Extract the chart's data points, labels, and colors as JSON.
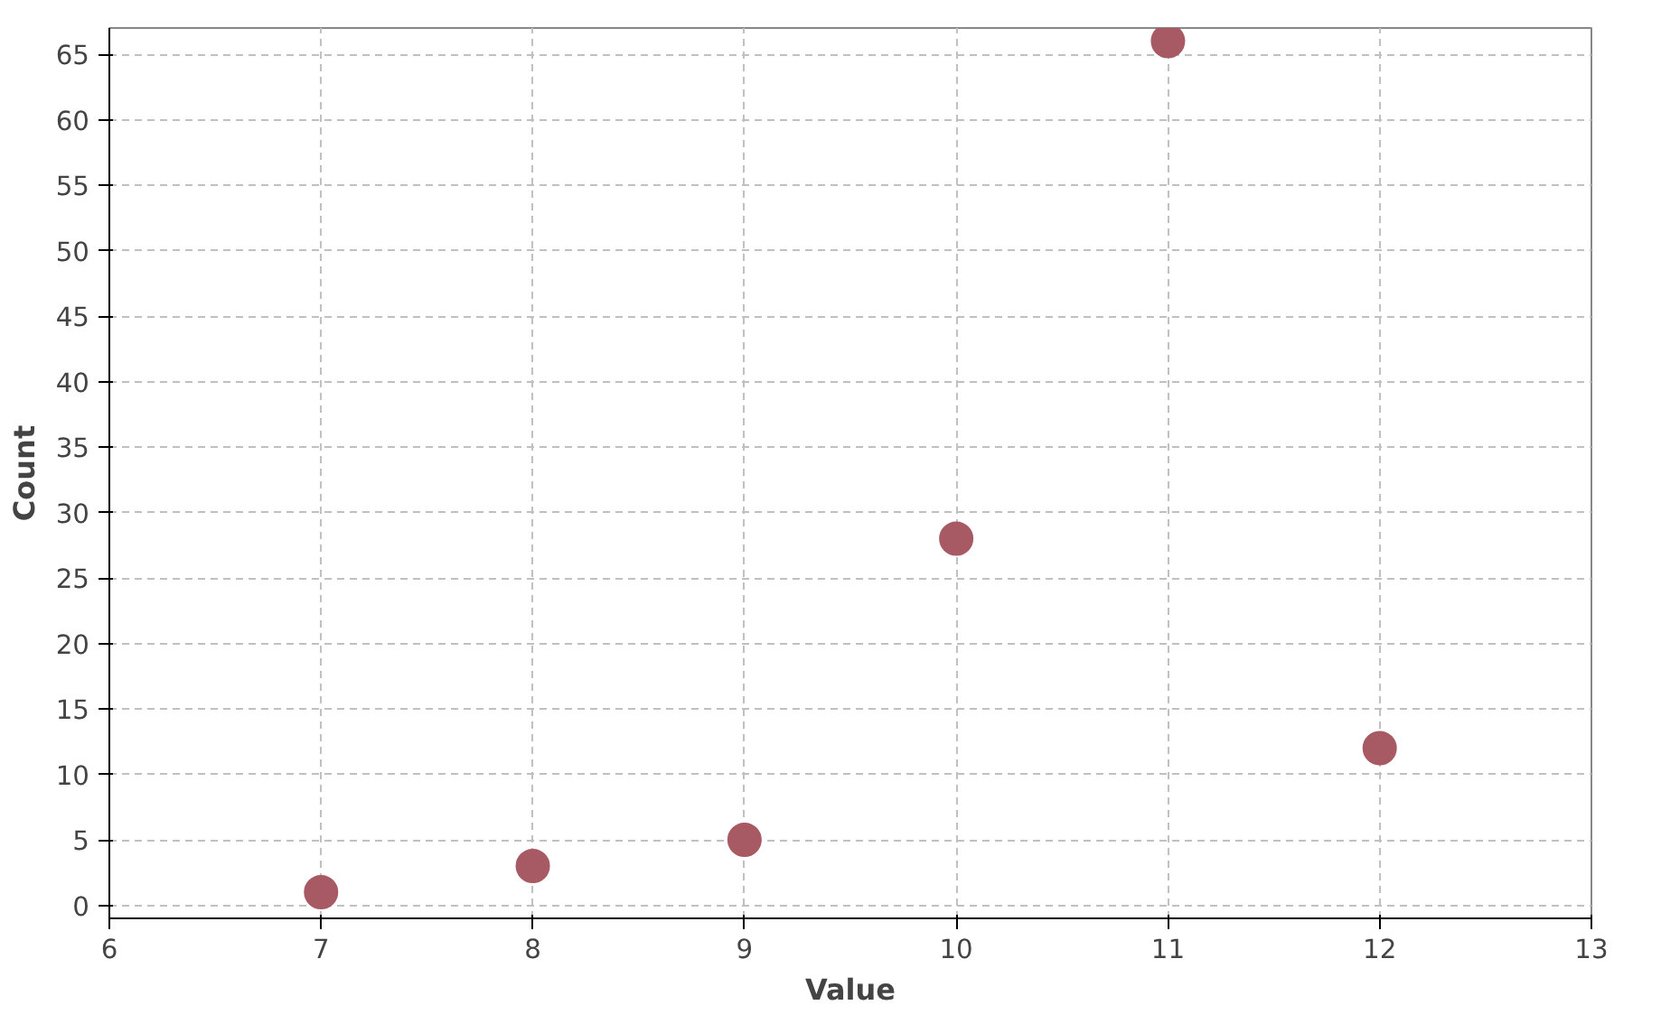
{
  "chart_data": {
    "type": "scatter",
    "xlabel": "Value",
    "ylabel": "Count",
    "x": [
      7,
      8,
      9,
      10,
      11,
      12
    ],
    "series": [
      {
        "color": "#a85a64",
        "values": [
          1,
          3,
          5,
          28,
          66,
          12
        ]
      }
    ],
    "xlim": [
      6,
      13
    ],
    "xticks": [
      6,
      7,
      8,
      9,
      10,
      11,
      12,
      13
    ],
    "ylim": [
      -1,
      67
    ],
    "yticks": [
      0,
      5,
      10,
      15,
      20,
      25,
      30,
      35,
      40,
      45,
      50,
      55,
      60,
      65
    ],
    "grid": true,
    "marker": "circle"
  }
}
